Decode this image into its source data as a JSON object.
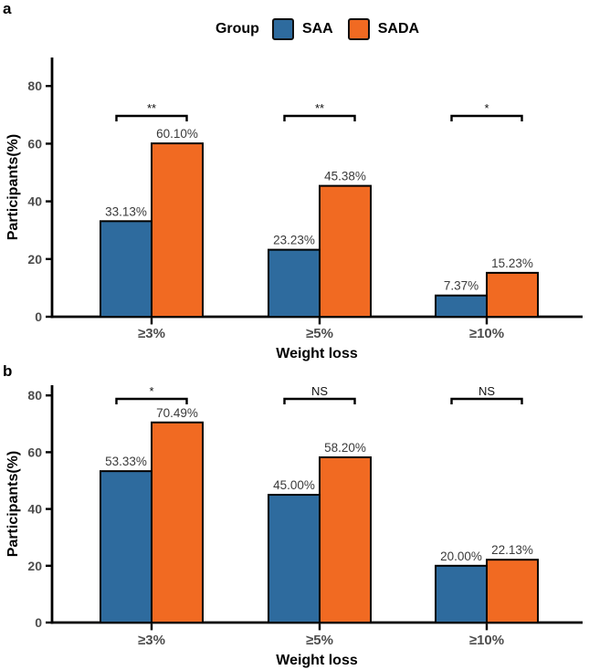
{
  "figure": {
    "legend": {
      "title": "Group",
      "items": [
        {
          "label": "SAA",
          "color": "#2E6B9E",
          "swatch_icon": "blue-square-swatch"
        },
        {
          "label": "SADA",
          "color": "#F16A22",
          "swatch_icon": "orange-square-swatch"
        }
      ]
    },
    "colors": {
      "saa_blue": "#2E6B9E",
      "sada_orange": "#F16A22",
      "axis": "#000000",
      "tick_label_gray": "#4d4d4d",
      "value_label_gray": "#3a3a3a"
    }
  },
  "chart_data": [
    {
      "type": "bar",
      "panel_label": "a",
      "categories": [
        "≥3%",
        "≥5%",
        "≥10%"
      ],
      "series": [
        {
          "name": "SAA",
          "color": "#2E6B9E",
          "values": [
            33.13,
            23.23,
            7.37
          ],
          "labels": [
            "33.13%",
            "23.23%",
            "7.37%"
          ]
        },
        {
          "name": "SADA",
          "color": "#F16A22",
          "values": [
            60.1,
            45.38,
            15.23
          ],
          "labels": [
            "60.10%",
            "45.38%",
            "15.23%"
          ]
        }
      ],
      "significance": [
        "**",
        "**",
        "*"
      ],
      "xlabel": "Weight loss",
      "ylabel": "Participants(%)",
      "yticks": [
        0,
        20,
        40,
        60,
        80
      ],
      "ylim": [
        0,
        88
      ],
      "grid": false,
      "legend_position": "top-center"
    },
    {
      "type": "bar",
      "panel_label": "b",
      "categories": [
        "≥3%",
        "≥5%",
        "≥10%"
      ],
      "series": [
        {
          "name": "SAA",
          "color": "#2E6B9E",
          "values": [
            53.33,
            45.0,
            20.0
          ],
          "labels": [
            "53.33%",
            "45.00%",
            "20.00%"
          ]
        },
        {
          "name": "SADA",
          "color": "#F16A22",
          "values": [
            70.49,
            58.2,
            22.13
          ],
          "labels": [
            "70.49%",
            "58.20%",
            "22.13%"
          ]
        }
      ],
      "significance": [
        "*",
        "NS",
        "NS"
      ],
      "xlabel": "Weight loss",
      "ylabel": "Participants(%)",
      "yticks": [
        0,
        20,
        40,
        60,
        80
      ],
      "ylim": [
        0,
        84
      ],
      "grid": false,
      "legend_position": "shared-top"
    }
  ]
}
